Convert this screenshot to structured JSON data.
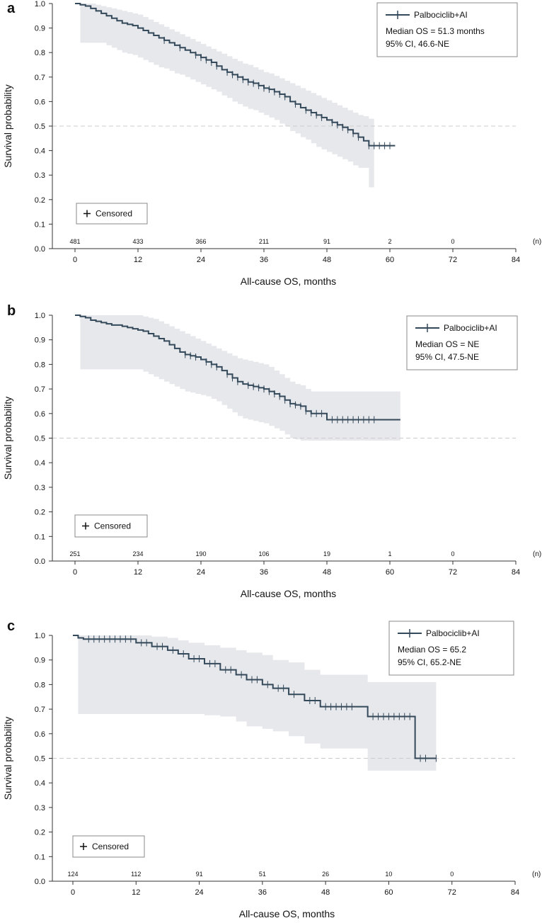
{
  "chart_data": [
    {
      "panel_label": "a",
      "type": "line",
      "series": [
        {
          "name": "Palbociclib+AI",
          "x": [
            0,
            1,
            2,
            3,
            4,
            5,
            6,
            7,
            8,
            9,
            10,
            11,
            12,
            13,
            14,
            15,
            16,
            17,
            18,
            19,
            20,
            21,
            22,
            23,
            24,
            25,
            26,
            27,
            28,
            29,
            30,
            31,
            32,
            33,
            34,
            35,
            36,
            37,
            38,
            39,
            40,
            41,
            42,
            43,
            44,
            45,
            46,
            47,
            48,
            49,
            50,
            51,
            52,
            53,
            54,
            55,
            56,
            57,
            58,
            59,
            60,
            61
          ],
          "y": [
            1.0,
            0.995,
            0.99,
            0.98,
            0.97,
            0.96,
            0.95,
            0.94,
            0.93,
            0.92,
            0.915,
            0.91,
            0.9,
            0.89,
            0.88,
            0.87,
            0.86,
            0.85,
            0.84,
            0.83,
            0.82,
            0.81,
            0.8,
            0.79,
            0.78,
            0.77,
            0.76,
            0.745,
            0.73,
            0.72,
            0.71,
            0.7,
            0.69,
            0.68,
            0.675,
            0.665,
            0.655,
            0.65,
            0.64,
            0.63,
            0.62,
            0.6,
            0.59,
            0.575,
            0.565,
            0.555,
            0.545,
            0.535,
            0.525,
            0.515,
            0.505,
            0.495,
            0.485,
            0.47,
            0.455,
            0.44,
            0.42,
            0.42,
            0.42,
            0.42,
            0.42,
            0.42
          ],
          "ci_lower": [
            0.84,
            0.84,
            0.84,
            0.84,
            0.84,
            0.84,
            0.83,
            0.82,
            0.81,
            0.8,
            0.795,
            0.79,
            0.78,
            0.77,
            0.76,
            0.75,
            0.74,
            0.735,
            0.725,
            0.715,
            0.71,
            0.7,
            0.69,
            0.68,
            0.67,
            0.66,
            0.65,
            0.64,
            0.625,
            0.615,
            0.6,
            0.59,
            0.58,
            0.57,
            0.565,
            0.555,
            0.545,
            0.535,
            0.525,
            0.51,
            0.5,
            0.48,
            0.47,
            0.455,
            0.445,
            0.43,
            0.415,
            0.405,
            0.395,
            0.385,
            0.375,
            0.365,
            0.355,
            0.34,
            0.33,
            0.33,
            0.25
          ],
          "ci_upper": [
            1.0,
            1.0,
            1.0,
            1.0,
            0.995,
            0.99,
            0.985,
            0.98,
            0.975,
            0.97,
            0.965,
            0.96,
            0.955,
            0.945,
            0.935,
            0.925,
            0.915,
            0.905,
            0.895,
            0.885,
            0.875,
            0.865,
            0.855,
            0.845,
            0.835,
            0.825,
            0.815,
            0.805,
            0.795,
            0.785,
            0.775,
            0.765,
            0.755,
            0.75,
            0.74,
            0.73,
            0.72,
            0.715,
            0.705,
            0.695,
            0.685,
            0.675,
            0.665,
            0.655,
            0.645,
            0.635,
            0.625,
            0.615,
            0.605,
            0.595,
            0.585,
            0.575,
            0.565,
            0.555,
            0.545,
            0.54,
            0.53
          ]
        }
      ],
      "censor_x": [
        17,
        20,
        23,
        24,
        25,
        26,
        27,
        29,
        30,
        31,
        32,
        33,
        34,
        35,
        36,
        37,
        38,
        39,
        40,
        42,
        44,
        45,
        46,
        47,
        49,
        50,
        51,
        52,
        53,
        54,
        56,
        57,
        58,
        59,
        60
      ],
      "legend": {
        "series_label": "Palbociclib+AI",
        "median": "Median OS = 51.3 months",
        "ci": "95% CI, 46.6-NE"
      },
      "censored_label": "Censored",
      "at_risk": {
        "x": [
          0,
          12,
          24,
          36,
          48,
          60,
          72
        ],
        "n": [
          "481",
          "433",
          "366",
          "211",
          "91",
          "2",
          "0"
        ],
        "unit_label": "(n)"
      },
      "xlabel": "All-cause OS, months",
      "ylabel": "Survival probability",
      "xticks": [
        0,
        12,
        24,
        36,
        48,
        60,
        72,
        84
      ],
      "yticks": [
        "0.0",
        "0.1",
        "0.2",
        "0.3",
        "0.4",
        "0.5",
        "0.6",
        "0.7",
        "0.8",
        "0.9",
        "1.0"
      ],
      "xlim": [
        -5,
        84
      ],
      "ylim": [
        0,
        1
      ],
      "reference_y": 0.5
    },
    {
      "panel_label": "b",
      "type": "line",
      "series": [
        {
          "name": "Palbociclib+AI",
          "x": [
            0,
            1,
            2,
            3,
            4,
            5,
            6,
            7,
            8,
            9,
            10,
            11,
            12,
            13,
            14,
            15,
            16,
            17,
            18,
            19,
            20,
            21,
            22,
            23,
            24,
            25,
            26,
            27,
            28,
            29,
            30,
            31,
            32,
            33,
            34,
            35,
            36,
            37,
            38,
            39,
            40,
            41,
            42,
            43,
            44,
            45,
            46,
            47,
            48,
            62
          ],
          "y": [
            1.0,
            0.995,
            0.99,
            0.98,
            0.975,
            0.97,
            0.965,
            0.96,
            0.96,
            0.955,
            0.95,
            0.945,
            0.94,
            0.935,
            0.925,
            0.915,
            0.905,
            0.895,
            0.88,
            0.865,
            0.85,
            0.84,
            0.835,
            0.83,
            0.82,
            0.81,
            0.8,
            0.79,
            0.775,
            0.76,
            0.745,
            0.73,
            0.72,
            0.715,
            0.71,
            0.705,
            0.7,
            0.69,
            0.68,
            0.67,
            0.655,
            0.64,
            0.635,
            0.63,
            0.61,
            0.6,
            0.6,
            0.6,
            0.575,
            0.575
          ],
          "ci_lower": [
            0.78,
            0.78,
            0.78,
            0.78,
            0.78,
            0.78,
            0.78,
            0.78,
            0.78,
            0.78,
            0.78,
            0.78,
            0.78,
            0.77,
            0.76,
            0.75,
            0.74,
            0.73,
            0.72,
            0.71,
            0.7,
            0.69,
            0.685,
            0.68,
            0.675,
            0.67,
            0.66,
            0.65,
            0.635,
            0.62,
            0.605,
            0.59,
            0.58,
            0.575,
            0.57,
            0.565,
            0.56,
            0.55,
            0.54,
            0.53,
            0.515,
            0.5,
            0.495,
            0.49,
            0.49,
            0.49,
            0.49,
            0.49,
            0.49
          ],
          "ci_upper": [
            1.0,
            1.0,
            1.0,
            1.0,
            1.0,
            1.0,
            1.0,
            1.0,
            1.0,
            1.0,
            1.0,
            1.0,
            1.0,
            0.995,
            0.99,
            0.985,
            0.975,
            0.965,
            0.955,
            0.945,
            0.935,
            0.925,
            0.915,
            0.905,
            0.895,
            0.885,
            0.875,
            0.865,
            0.855,
            0.845,
            0.835,
            0.825,
            0.82,
            0.815,
            0.81,
            0.805,
            0.8,
            0.79,
            0.775,
            0.76,
            0.745,
            0.73,
            0.72,
            0.715,
            0.7,
            0.69,
            0.69,
            0.69,
            0.69
          ]
        }
      ],
      "censor_x": [
        21,
        22,
        23,
        25,
        26,
        27,
        29,
        30,
        31,
        33,
        34,
        35,
        36,
        37,
        38,
        39,
        40,
        41,
        42,
        43,
        44,
        45,
        46,
        47,
        49,
        50,
        51,
        52,
        53,
        54,
        55,
        56,
        57
      ],
      "legend": {
        "series_label": "Palbociclib+AI",
        "median": "Median OS = NE",
        "ci": "95% CI, 47.5-NE"
      },
      "censored_label": "Censored",
      "at_risk": {
        "x": [
          0,
          12,
          24,
          36,
          48,
          60,
          72
        ],
        "n": [
          "251",
          "234",
          "190",
          "106",
          "19",
          "1",
          "0"
        ],
        "unit_label": "(n)"
      },
      "xlabel": "All-cause OS, months",
      "ylabel": "Survival probability",
      "xticks": [
        0,
        12,
        24,
        36,
        48,
        60,
        72,
        84
      ],
      "yticks": [
        "0.0",
        "0.1",
        "0.2",
        "0.3",
        "0.4",
        "0.5",
        "0.6",
        "0.7",
        "0.8",
        "0.9",
        "1.0"
      ],
      "xlim": [
        -5,
        84
      ],
      "ylim": [
        0,
        1
      ],
      "reference_y": 0.5
    },
    {
      "panel_label": "c",
      "type": "line",
      "series": [
        {
          "name": "Palbociclib+AI",
          "x": [
            0,
            1,
            2,
            10,
            12,
            15,
            18,
            20,
            22,
            25,
            28,
            31,
            33,
            36,
            38,
            41,
            44,
            47,
            56,
            65,
            69
          ],
          "y": [
            1.0,
            0.99,
            0.985,
            0.985,
            0.97,
            0.955,
            0.94,
            0.925,
            0.905,
            0.885,
            0.86,
            0.84,
            0.82,
            0.8,
            0.785,
            0.76,
            0.735,
            0.71,
            0.67,
            0.5,
            0.5
          ],
          "ci_lower": [
            0.68,
            0.68,
            0.68,
            0.68,
            0.68,
            0.68,
            0.68,
            0.68,
            0.68,
            0.675,
            0.67,
            0.65,
            0.63,
            0.62,
            0.61,
            0.59,
            0.56,
            0.54,
            0.45,
            0.45
          ],
          "ci_upper": [
            1.0,
            1.0,
            1.0,
            1.0,
            1.0,
            0.995,
            0.99,
            0.98,
            0.97,
            0.96,
            0.95,
            0.94,
            0.93,
            0.92,
            0.9,
            0.89,
            0.86,
            0.84,
            0.81,
            0.81
          ]
        }
      ],
      "censor_x": [
        3,
        4,
        5,
        6,
        7,
        8,
        9,
        10,
        11,
        13,
        14,
        16,
        17,
        19,
        21,
        23,
        24,
        26,
        27,
        29,
        30,
        32,
        34,
        35,
        37,
        39,
        40,
        42,
        45,
        46,
        48,
        49,
        50,
        51,
        52,
        53,
        57,
        58,
        59,
        60,
        61,
        62,
        63,
        64,
        66,
        67,
        69
      ],
      "legend": {
        "series_label": "Palbociclib+AI",
        "median": "Median OS = 65.2",
        "ci": "95% CI, 65.2-NE"
      },
      "censored_label": "Censored",
      "at_risk": {
        "x": [
          0,
          12,
          24,
          36,
          48,
          60,
          72
        ],
        "n": [
          "124",
          "112",
          "91",
          "51",
          "26",
          "10",
          "0"
        ],
        "unit_label": "(n)"
      },
      "xlabel": "All-cause OS, months",
      "ylabel": "Survival probability",
      "xticks": [
        0,
        12,
        24,
        36,
        48,
        60,
        72,
        84
      ],
      "yticks": [
        "0.0",
        "0.1",
        "0.2",
        "0.3",
        "0.4",
        "0.5",
        "0.6",
        "0.7",
        "0.8",
        "0.9",
        "1.0"
      ],
      "xlim": [
        -5,
        84
      ],
      "ylim": [
        0,
        1
      ],
      "reference_y": 0.5
    }
  ],
  "colors": {
    "line": "#34495a",
    "ci_band": "#e6e8ec",
    "reference": "#cccccc",
    "axis": "#333333",
    "legend_border": "#888888"
  }
}
